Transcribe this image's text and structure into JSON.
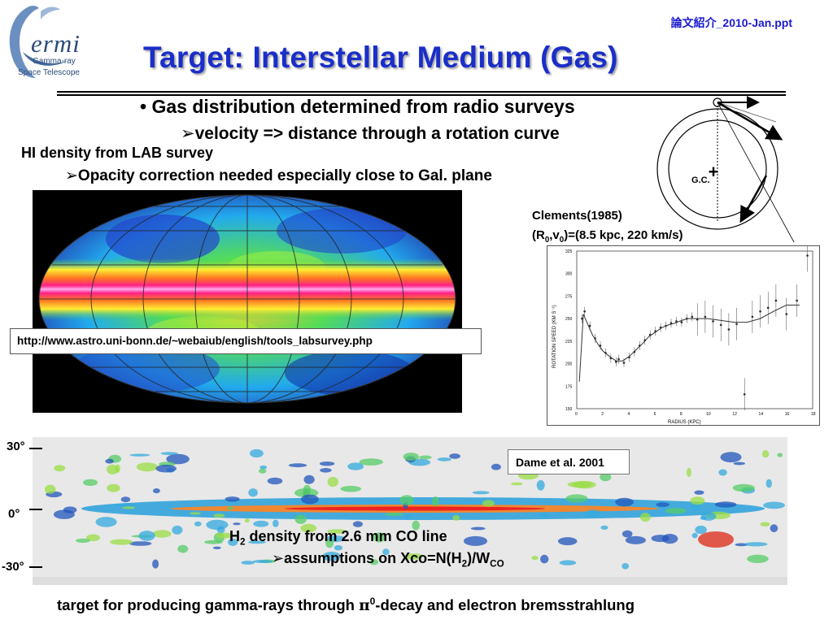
{
  "header": {
    "logo_word": "ermi",
    "logo_sub1": "Gamma-ray",
    "logo_sub2": "Space Telescope",
    "filename": "論文紹介_2010-Jan.ppt",
    "title": "Target: Interstellar Medium (Gas)"
  },
  "bullets": {
    "b1_marker": "•",
    "b1": "Gas distribution determined from radio surveys",
    "b2_marker": "➢",
    "b2": "velocity => distance through a rotation curve",
    "b3": "HI density from LAB survey",
    "b4_marker": "➢",
    "b4": "Opacity correction needed especially close to Gal. plane"
  },
  "hi_map": {
    "url": "http://www.astro.uni-bonn.de/~webaiub/english/tools_labsurvey.php"
  },
  "rotation": {
    "gc_label": "G.C.",
    "plus": "+",
    "clements_line1": "Clements(1985)",
    "clements_line2_prefix": "(R",
    "clements_sub0": "0",
    "clements_mid": ",v",
    "clements_sub1": "0",
    "clements_line2_suffix": ")=(8.5 kpc, 220 km/s)",
    "ylabel": "ROTATION SPEED (KM S⁻¹)",
    "xlabel": "RADIUS (KPC)"
  },
  "chart_data": {
    "type": "scatter",
    "title": "",
    "xlabel": "RADIUS (KPC)",
    "ylabel": "ROTATION SPEED (KM S⁻¹)",
    "xlim": [
      0,
      18
    ],
    "ylim": [
      150,
      325
    ],
    "x_ticks": [
      0,
      2,
      4,
      6,
      8,
      10,
      12,
      14,
      16,
      18
    ],
    "y_ticks": [
      150,
      175,
      200,
      225,
      250,
      275,
      300,
      325
    ],
    "curve": {
      "x": [
        0.2,
        0.5,
        0.8,
        1.2,
        1.6,
        2.0,
        2.5,
        3.0,
        3.5,
        4.0,
        4.5,
        5.0,
        5.5,
        6.0,
        6.5,
        7.0,
        7.5,
        8.0,
        8.5,
        9.0,
        10.0,
        11.0,
        12.0,
        13.0,
        14.0,
        15.0,
        16.0,
        17.0
      ],
      "y": [
        180,
        255,
        245,
        232,
        222,
        214,
        208,
        203,
        203,
        208,
        215,
        222,
        230,
        235,
        240,
        243,
        245,
        248,
        250,
        250,
        250,
        248,
        246,
        246,
        250,
        258,
        265,
        265
      ]
    },
    "points": {
      "x": [
        0.4,
        0.6,
        1.0,
        1.4,
        1.8,
        2.2,
        2.6,
        3.0,
        3.2,
        3.6,
        4.0,
        4.4,
        4.8,
        5.2,
        5.6,
        6.0,
        6.4,
        6.8,
        7.2,
        7.6,
        8.0,
        8.4,
        8.8,
        9.2,
        9.8,
        10.4,
        11.0,
        11.6,
        12.2,
        12.8,
        13.4,
        14.0,
        14.6,
        15.2,
        16.0,
        16.8,
        17.6
      ],
      "y": [
        250,
        258,
        242,
        228,
        220,
        212,
        206,
        202,
        205,
        201,
        207,
        213,
        220,
        226,
        232,
        236,
        240,
        242,
        245,
        247,
        246,
        250,
        252,
        249,
        252,
        247,
        243,
        238,
        244,
        166,
        252,
        258,
        262,
        270,
        255,
        270,
        320
      ]
    }
  },
  "co_map": {
    "lat30": "30°",
    "lat0": "0°",
    "latm30": "-30°",
    "credit": "Dame et al. 2001",
    "text1_prefix": "H",
    "text1_sub": "2",
    "text1_suffix": " density from 2.6 mm CO line",
    "text2_marker": "➢",
    "text2_prefix": "assumptions on Xco=N(H",
    "text2_sub1": "2",
    "text2_mid": ")/W",
    "text2_sub2": "CO"
  },
  "footer": {
    "prefix": "target for producing gamma-rays through ",
    "pi": "π",
    "sup": "0",
    "suffix": "-decay and electron bremsstrahlung"
  },
  "colors": {
    "title": "#1a2ec8",
    "filename": "#1a1ad0",
    "logo": "#2b4a7a"
  }
}
